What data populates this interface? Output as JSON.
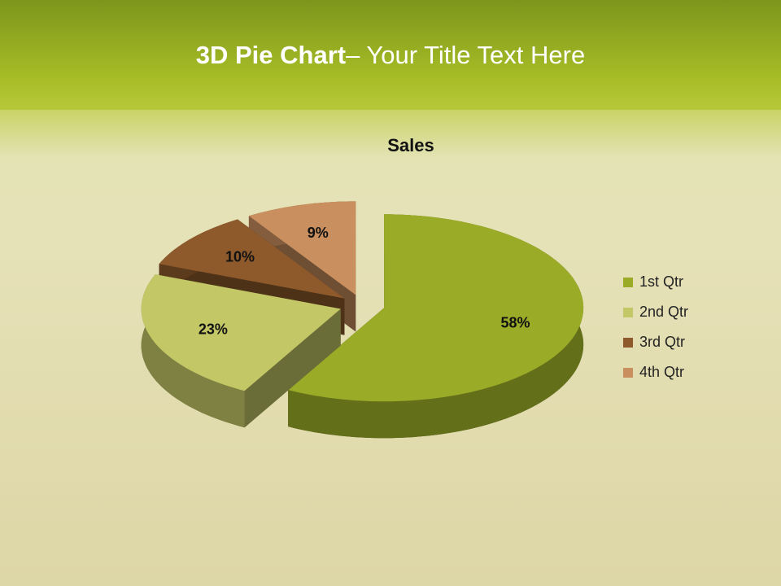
{
  "slide": {
    "title_bold": "3D Pie Chart",
    "title_rest": "– Your Title Text Here"
  },
  "chart_data": {
    "type": "pie",
    "title": "Sales",
    "categories": [
      "1st Qtr",
      "2nd Qtr",
      "3rd Qtr",
      "4th Qtr"
    ],
    "values": [
      58,
      23,
      10,
      9
    ],
    "value_labels": [
      "58%",
      "23%",
      "10%",
      "9%"
    ],
    "colors": [
      "#9aab28",
      "#c3c766",
      "#8e5a2c",
      "#c98f5e"
    ],
    "legend": "right"
  }
}
